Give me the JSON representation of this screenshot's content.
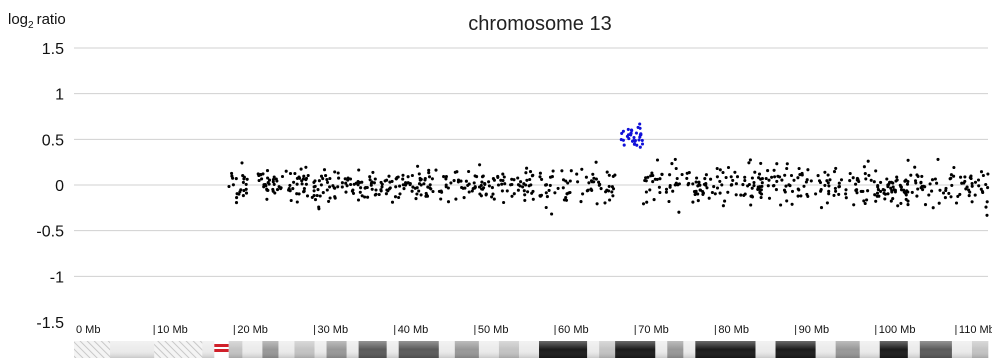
{
  "chart_data": {
    "type": "scatter",
    "title": "chromosome 13",
    "ylabel": "ratio",
    "ylabel_prefix": "log",
    "ylabel_sub": "2",
    "ylim": [
      -1.5,
      1.5
    ],
    "yticks": [
      1.5,
      1,
      0.5,
      0,
      -0.5,
      -1,
      -1.5
    ],
    "ytick_labels": [
      "1.5",
      "1",
      "0.5",
      "0",
      "-0.5",
      "-1",
      "-1.5"
    ],
    "xlim": [
      0,
      114
    ],
    "xticks": [
      0,
      10,
      20,
      30,
      40,
      50,
      60,
      70,
      80,
      90,
      100,
      110
    ],
    "xtick_labels": [
      "0 Mb",
      "10 Mb",
      "20 Mb",
      "30 Mb",
      "40 Mb",
      "50 Mb",
      "60 Mb",
      "70 Mb",
      "80 Mb",
      "90 Mb",
      "100 Mb",
      "110 Mb"
    ],
    "grid": true,
    "series": [
      {
        "color": "#000000",
        "segments": [
          {
            "x_start": 19.3,
            "x_end": 67.5,
            "mean": 0.0,
            "spread": 0.1
          },
          {
            "x_start": 71.0,
            "x_end": 114.0,
            "mean": 0.0,
            "spread": 0.1
          }
        ]
      },
      {
        "color": "#1010d8",
        "segments": [
          {
            "x_start": 68.2,
            "x_end": 71.0,
            "mean": 0.52,
            "spread": 0.08
          }
        ]
      }
    ],
    "ideogram": {
      "bands": [
        {
          "start": 0,
          "end": 4.5,
          "type": "hatched"
        },
        {
          "start": 4.5,
          "end": 10.0,
          "type": "gneg"
        },
        {
          "start": 10.0,
          "end": 16.0,
          "type": "hatched"
        },
        {
          "start": 16.0,
          "end": 17.5,
          "type": "gneg"
        },
        {
          "start": 17.5,
          "end": 19.3,
          "type": "centromere"
        },
        {
          "start": 19.3,
          "end": 21.0,
          "type": "gpos25"
        },
        {
          "start": 21.0,
          "end": 23.5,
          "type": "gneg"
        },
        {
          "start": 23.5,
          "end": 25.5,
          "type": "gpos50"
        },
        {
          "start": 25.5,
          "end": 27.5,
          "type": "gneg"
        },
        {
          "start": 27.5,
          "end": 30.0,
          "type": "gpos25"
        },
        {
          "start": 30.0,
          "end": 31.5,
          "type": "gneg"
        },
        {
          "start": 31.5,
          "end": 34.0,
          "type": "gpos50"
        },
        {
          "start": 34.0,
          "end": 35.5,
          "type": "gneg"
        },
        {
          "start": 35.5,
          "end": 39.0,
          "type": "gpos75"
        },
        {
          "start": 39.0,
          "end": 40.5,
          "type": "gneg"
        },
        {
          "start": 40.5,
          "end": 45.5,
          "type": "gpos75"
        },
        {
          "start": 45.5,
          "end": 47.5,
          "type": "gneg"
        },
        {
          "start": 47.5,
          "end": 50.5,
          "type": "gpos50"
        },
        {
          "start": 50.5,
          "end": 53.0,
          "type": "gneg"
        },
        {
          "start": 53.0,
          "end": 55.5,
          "type": "gpos25"
        },
        {
          "start": 55.5,
          "end": 58.0,
          "type": "gneg"
        },
        {
          "start": 58.0,
          "end": 64.0,
          "type": "gpos100"
        },
        {
          "start": 64.0,
          "end": 65.5,
          "type": "gneg"
        },
        {
          "start": 65.5,
          "end": 67.5,
          "type": "gpos25"
        },
        {
          "start": 67.5,
          "end": 72.5,
          "type": "gpos100"
        },
        {
          "start": 72.5,
          "end": 74.0,
          "type": "gneg"
        },
        {
          "start": 74.0,
          "end": 76.0,
          "type": "gpos50"
        },
        {
          "start": 76.0,
          "end": 77.5,
          "type": "gneg"
        },
        {
          "start": 77.5,
          "end": 85.0,
          "type": "gpos100"
        },
        {
          "start": 85.0,
          "end": 87.5,
          "type": "gneg"
        },
        {
          "start": 87.5,
          "end": 92.5,
          "type": "gpos100"
        },
        {
          "start": 92.5,
          "end": 95.0,
          "type": "gneg"
        },
        {
          "start": 95.0,
          "end": 98.0,
          "type": "gpos50"
        },
        {
          "start": 98.0,
          "end": 100.5,
          "type": "gneg"
        },
        {
          "start": 100.5,
          "end": 104.0,
          "type": "gpos100"
        },
        {
          "start": 104.0,
          "end": 105.5,
          "type": "gneg"
        },
        {
          "start": 105.5,
          "end": 109.5,
          "type": "gpos75"
        },
        {
          "start": 109.5,
          "end": 112.0,
          "type": "gneg"
        },
        {
          "start": 112.0,
          "end": 114.0,
          "type": "gpos25"
        }
      ]
    }
  },
  "colors": {
    "grid": "#d0d0d0",
    "ytick": "#111111",
    "title": "#222222",
    "points_normal": "#000000",
    "points_gain": "#1010d8",
    "centromere": "#d0202a",
    "gneg": "#ebebeb",
    "gpos25": "#c4c4c4",
    "gpos50": "#989898",
    "gpos75": "#5a5a5a",
    "gpos100": "#1a1a1a"
  }
}
